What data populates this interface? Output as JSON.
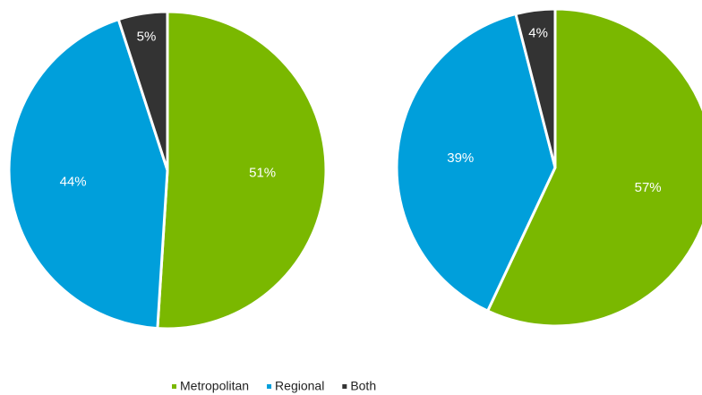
{
  "chart_data": [
    {
      "type": "pie",
      "categories": [
        "Metropolitan",
        "Regional",
        "Both"
      ],
      "values": [
        51,
        44,
        5
      ],
      "value_labels": [
        "51%",
        "44%",
        "5%"
      ],
      "colors": [
        "#7ab800",
        "#009fdb",
        "#333333"
      ]
    },
    {
      "type": "pie",
      "categories": [
        "Metropolitan",
        "Regional",
        "Both"
      ],
      "values": [
        57,
        39,
        4
      ],
      "value_labels": [
        "57%",
        "39%",
        "4%"
      ],
      "colors": [
        "#7ab800",
        "#009fdb",
        "#333333"
      ]
    }
  ]
}
